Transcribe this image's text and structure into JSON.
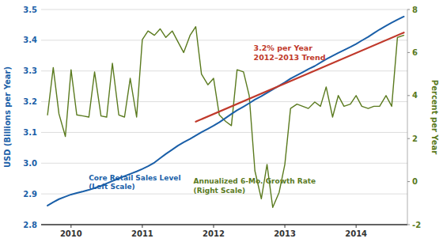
{
  "chart_data": {
    "type": "line",
    "ylabel": "USD (Billions per Year)",
    "y2label": "Percent per Year",
    "xlim": [
      2009.58,
      2014.72
    ],
    "xticks": [
      2010,
      2011,
      2012,
      2013,
      2014
    ],
    "ylim": [
      2.8,
      3.5
    ],
    "yticks": [
      2.8,
      2.9,
      {
        "value": 3.0,
        "label": "3.0"
      },
      3.1,
      3.2,
      3.3,
      3.4,
      3.5
    ],
    "y2lim": [
      -2,
      8
    ],
    "y2ticks": [
      -2,
      0,
      2,
      4,
      6,
      8
    ],
    "grid": true,
    "series": [
      {
        "color": "#5a7a1e",
        "axis": "y2",
        "x": [
          2009.67,
          2009.75,
          2009.83,
          2009.92,
          2010.0,
          2010.08,
          2010.17,
          2010.25,
          2010.33,
          2010.42,
          2010.5,
          2010.58,
          2010.67,
          2010.75,
          2010.83,
          2010.92,
          2011.0,
          2011.08,
          2011.17,
          2011.25,
          2011.33,
          2011.42,
          2011.5,
          2011.58,
          2011.67,
          2011.75,
          2011.83,
          2011.92,
          2012.0,
          2012.08,
          2012.17,
          2012.25,
          2012.33,
          2012.42,
          2012.5,
          2012.58,
          2012.67,
          2012.75,
          2012.83,
          2012.92,
          2013.0,
          2013.08,
          2013.17,
          2013.25,
          2013.33,
          2013.42,
          2013.5,
          2013.58,
          2013.67,
          2013.75,
          2013.83,
          2013.92,
          2014.0,
          2014.08,
          2014.17,
          2014.25,
          2014.33,
          2014.42,
          2014.5,
          2014.58,
          2014.67
        ],
        "values": [
          3.1,
          5.3,
          3.15,
          2.1,
          5.2,
          3.1,
          3.05,
          3.0,
          5.1,
          3.05,
          3.0,
          5.5,
          3.1,
          3.0,
          4.8,
          3.0,
          6.6,
          7.0,
          6.8,
          7.1,
          6.7,
          7.0,
          6.5,
          6.0,
          6.8,
          7.2,
          5.0,
          4.5,
          4.8,
          3.1,
          2.8,
          2.6,
          5.2,
          5.1,
          4.0,
          0.5,
          -0.8,
          0.8,
          -1.2,
          -0.5,
          0.8,
          3.4,
          3.6,
          3.5,
          3.4,
          3.7,
          3.5,
          4.4,
          3.0,
          4.0,
          3.5,
          3.6,
          4.0,
          3.5,
          3.4,
          3.5,
          3.5,
          4.0,
          3.5,
          6.7,
          6.8
        ]
      },
      {
        "color": "#1a5fa8",
        "x": [
          2009.67,
          2009.75,
          2009.83,
          2009.92,
          2010.0,
          2010.08,
          2010.17,
          2010.25,
          2010.33,
          2010.42,
          2010.5,
          2010.58,
          2010.67,
          2010.75,
          2010.83,
          2010.92,
          2011.0,
          2011.08,
          2011.17,
          2011.25,
          2011.33,
          2011.42,
          2011.5,
          2011.58,
          2011.67,
          2011.75,
          2011.83,
          2011.92,
          2012.0,
          2012.08,
          2012.17,
          2012.25,
          2012.33,
          2012.42,
          2012.5,
          2012.58,
          2012.67,
          2012.75,
          2012.83,
          2012.92,
          2013.0,
          2013.08,
          2013.17,
          2013.25,
          2013.33,
          2013.42,
          2013.5,
          2013.58,
          2013.67,
          2013.75,
          2013.83,
          2013.92,
          2014.0,
          2014.08,
          2014.17,
          2014.25,
          2014.33,
          2014.42,
          2014.5,
          2014.58,
          2014.67
        ],
        "values": [
          2.862,
          2.873,
          2.883,
          2.891,
          2.898,
          2.903,
          2.908,
          2.913,
          2.919,
          2.926,
          2.934,
          2.942,
          2.95,
          2.958,
          2.965,
          2.973,
          2.981,
          2.99,
          3.002,
          3.016,
          3.03,
          3.044,
          3.057,
          3.068,
          3.079,
          3.09,
          3.101,
          3.112,
          3.122,
          3.133,
          3.147,
          3.16,
          3.172,
          3.184,
          3.195,
          3.207,
          3.218,
          3.229,
          3.24,
          3.252,
          3.263,
          3.275,
          3.286,
          3.296,
          3.306,
          3.316,
          3.327,
          3.338,
          3.349,
          3.359,
          3.368,
          3.378,
          3.388,
          3.399,
          3.411,
          3.423,
          3.435,
          3.447,
          3.457,
          3.467,
          3.477
        ]
      },
      {
        "color": "#c0392b",
        "x": [
          2011.75,
          2014.67
        ],
        "values": [
          3.135,
          3.425
        ]
      }
    ],
    "annotations": [
      {
        "text": "Core Retail Sales Level\n(Left Scale)",
        "color": "#1a5fa8"
      },
      {
        "text": "Annualized 6-Mo. Growth Rate\n(Right Scale)",
        "color": "#5a7a1e"
      },
      {
        "text": "3.2% per Year\n2012–2013 Trend",
        "color": "#c0392b"
      }
    ]
  }
}
